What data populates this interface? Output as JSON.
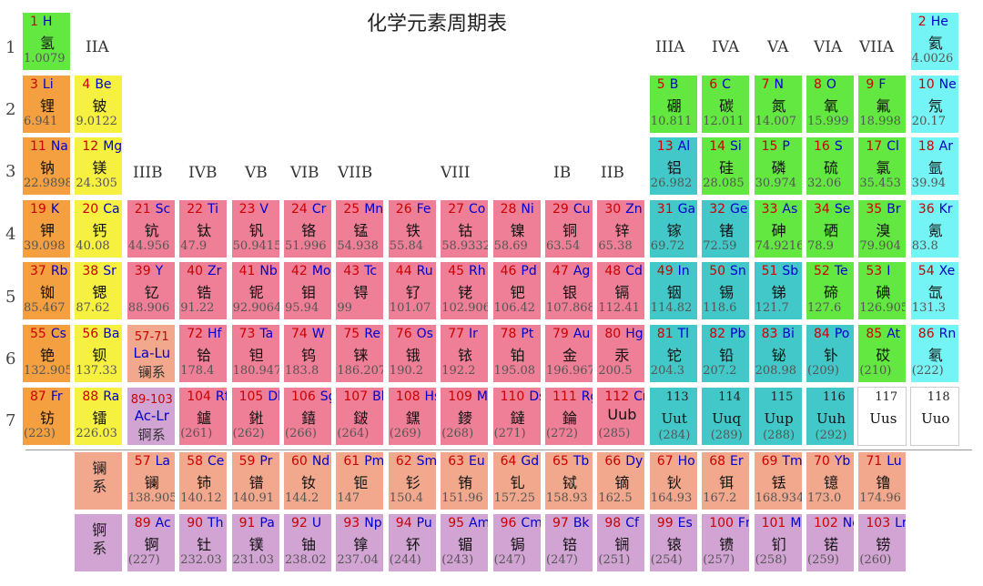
{
  "title": "化学元素周期表",
  "colors": {
    "alkali": "#f4a040",
    "alkaline": "#f6f040",
    "transition": "#ef7f97",
    "poor": "#42c8c8",
    "nonmetal": "#62e840",
    "noble": "#74f4f4",
    "lanthanide": "#f2a88c",
    "actinide": "#d2a4d4",
    "unknown": "#ffffff"
  },
  "period_labels": [
    "1",
    "2",
    "3",
    "4",
    "5",
    "6",
    "7"
  ],
  "group_labels": {
    "IIA": "IIA",
    "IIIB": "IIIB",
    "IVB": "IVB",
    "VB": "VB",
    "VIB": "VIB",
    "VIIB": "VIIB",
    "VIII": "VIII",
    "IB": "IB",
    "IIB": "IIB",
    "IIIA": "IIIA",
    "IVA": "IVA",
    "VA": "VA",
    "VIA": "VIA",
    "VIIA": "VIIA"
  },
  "series_labels": {
    "lanthanide": [
      "镧",
      "系"
    ],
    "actinide": [
      "锕",
      "系"
    ]
  },
  "elements": [
    {
      "n": "1",
      "s": "H",
      "cn": "氢",
      "m": "1.0079",
      "col": 1,
      "row": 1,
      "cat": "nonmetal"
    },
    {
      "n": "2",
      "s": "He",
      "cn": "氦",
      "m": "4.0026",
      "col": 18,
      "row": 1,
      "cat": "noble"
    },
    {
      "n": "3",
      "s": "Li",
      "cn": "锂",
      "m": "6.941",
      "col": 1,
      "row": 2,
      "cat": "alkali"
    },
    {
      "n": "4",
      "s": "Be",
      "cn": "铍",
      "m": "9.0122",
      "col": 2,
      "row": 2,
      "cat": "alkaline"
    },
    {
      "n": "5",
      "s": "B",
      "cn": "硼",
      "m": "10.811",
      "col": 13,
      "row": 2,
      "cat": "nonmetal"
    },
    {
      "n": "6",
      "s": "C",
      "cn": "碳",
      "m": "12.011",
      "col": 14,
      "row": 2,
      "cat": "nonmetal"
    },
    {
      "n": "7",
      "s": "N",
      "cn": "氮",
      "m": "14.007",
      "col": 15,
      "row": 2,
      "cat": "nonmetal"
    },
    {
      "n": "8",
      "s": "O",
      "cn": "氧",
      "m": "15.999",
      "col": 16,
      "row": 2,
      "cat": "nonmetal"
    },
    {
      "n": "9",
      "s": "F",
      "cn": "氟",
      "m": "18.998",
      "col": 17,
      "row": 2,
      "cat": "nonmetal"
    },
    {
      "n": "10",
      "s": "Ne",
      "cn": "氖",
      "m": "20.17",
      "col": 18,
      "row": 2,
      "cat": "noble"
    },
    {
      "n": "11",
      "s": "Na",
      "cn": "钠",
      "m": "22.9898",
      "col": 1,
      "row": 3,
      "cat": "alkali"
    },
    {
      "n": "12",
      "s": "Mg",
      "cn": "镁",
      "m": "24.305",
      "col": 2,
      "row": 3,
      "cat": "alkaline"
    },
    {
      "n": "13",
      "s": "Al",
      "cn": "铝",
      "m": "26.982",
      "col": 13,
      "row": 3,
      "cat": "poor"
    },
    {
      "n": "14",
      "s": "Si",
      "cn": "硅",
      "m": "28.085",
      "col": 14,
      "row": 3,
      "cat": "nonmetal"
    },
    {
      "n": "15",
      "s": "P",
      "cn": "磷",
      "m": "30.974",
      "col": 15,
      "row": 3,
      "cat": "nonmetal"
    },
    {
      "n": "16",
      "s": "S",
      "cn": "硫",
      "m": "32.06",
      "col": 16,
      "row": 3,
      "cat": "nonmetal"
    },
    {
      "n": "17",
      "s": "Cl",
      "cn": "氯",
      "m": "35.453",
      "col": 17,
      "row": 3,
      "cat": "nonmetal"
    },
    {
      "n": "18",
      "s": "Ar",
      "cn": "氩",
      "m": "39.94",
      "col": 18,
      "row": 3,
      "cat": "noble"
    },
    {
      "n": "19",
      "s": "K",
      "cn": "钾",
      "m": "39.098",
      "col": 1,
      "row": 4,
      "cat": "alkali"
    },
    {
      "n": "20",
      "s": "Ca",
      "cn": "钙",
      "m": "40.08",
      "col": 2,
      "row": 4,
      "cat": "alkaline"
    },
    {
      "n": "21",
      "s": "Sc",
      "cn": "钪",
      "m": "44.956",
      "col": 3,
      "row": 4,
      "cat": "transition"
    },
    {
      "n": "22",
      "s": "Ti",
      "cn": "钛",
      "m": "47.9",
      "col": 4,
      "row": 4,
      "cat": "transition"
    },
    {
      "n": "23",
      "s": "V",
      "cn": "钒",
      "m": "50.9415",
      "col": 5,
      "row": 4,
      "cat": "transition"
    },
    {
      "n": "24",
      "s": "Cr",
      "cn": "铬",
      "m": "51.996",
      "col": 6,
      "row": 4,
      "cat": "transition"
    },
    {
      "n": "25",
      "s": "Mn",
      "cn": "锰",
      "m": "54.938",
      "col": 7,
      "row": 4,
      "cat": "transition"
    },
    {
      "n": "26",
      "s": "Fe",
      "cn": "铁",
      "m": "55.84",
      "col": 8,
      "row": 4,
      "cat": "transition"
    },
    {
      "n": "27",
      "s": "Co",
      "cn": "钴",
      "m": "58.9332",
      "col": 9,
      "row": 4,
      "cat": "transition"
    },
    {
      "n": "28",
      "s": "Ni",
      "cn": "镍",
      "m": "58.69",
      "col": 10,
      "row": 4,
      "cat": "transition"
    },
    {
      "n": "29",
      "s": "Cu",
      "cn": "铜",
      "m": "63.54",
      "col": 11,
      "row": 4,
      "cat": "transition"
    },
    {
      "n": "30",
      "s": "Zn",
      "cn": "锌",
      "m": "65.38",
      "col": 12,
      "row": 4,
      "cat": "transition"
    },
    {
      "n": "31",
      "s": "Ga",
      "cn": "镓",
      "m": "69.72",
      "col": 13,
      "row": 4,
      "cat": "poor"
    },
    {
      "n": "32",
      "s": "Ge",
      "cn": "锗",
      "m": "72.59",
      "col": 14,
      "row": 4,
      "cat": "poor"
    },
    {
      "n": "33",
      "s": "As",
      "cn": "砷",
      "m": "74.9216",
      "col": 15,
      "row": 4,
      "cat": "nonmetal"
    },
    {
      "n": "34",
      "s": "Se",
      "cn": "硒",
      "m": "78.9",
      "col": 16,
      "row": 4,
      "cat": "nonmetal"
    },
    {
      "n": "35",
      "s": "Br",
      "cn": "溴",
      "m": "79.904",
      "col": 17,
      "row": 4,
      "cat": "nonmetal"
    },
    {
      "n": "36",
      "s": "Kr",
      "cn": "氪",
      "m": "83.8",
      "col": 18,
      "row": 4,
      "cat": "noble"
    },
    {
      "n": "37",
      "s": "Rb",
      "cn": "铷",
      "m": "85.467",
      "col": 1,
      "row": 5,
      "cat": "alkali"
    },
    {
      "n": "38",
      "s": "Sr",
      "cn": "锶",
      "m": "87.62",
      "col": 2,
      "row": 5,
      "cat": "alkaline"
    },
    {
      "n": "39",
      "s": "Y",
      "cn": "钇",
      "m": "88.906",
      "col": 3,
      "row": 5,
      "cat": "transition"
    },
    {
      "n": "40",
      "s": "Zr",
      "cn": "锆",
      "m": "91.22",
      "col": 4,
      "row": 5,
      "cat": "transition"
    },
    {
      "n": "41",
      "s": "Nb",
      "cn": "铌",
      "m": "92.9064",
      "col": 5,
      "row": 5,
      "cat": "transition"
    },
    {
      "n": "42",
      "s": "Mo",
      "cn": "钼",
      "m": "95.94",
      "col": 6,
      "row": 5,
      "cat": "transition"
    },
    {
      "n": "43",
      "s": "Tc",
      "cn": "锝",
      "m": "99",
      "col": 7,
      "row": 5,
      "cat": "transition"
    },
    {
      "n": "44",
      "s": "Ru",
      "cn": "钌",
      "m": "101.07",
      "col": 8,
      "row": 5,
      "cat": "transition"
    },
    {
      "n": "45",
      "s": "Rh",
      "cn": "铑",
      "m": "102.906",
      "col": 9,
      "row": 5,
      "cat": "transition"
    },
    {
      "n": "46",
      "s": "Pd",
      "cn": "钯",
      "m": "106.42",
      "col": 10,
      "row": 5,
      "cat": "transition"
    },
    {
      "n": "47",
      "s": "Ag",
      "cn": "银",
      "m": "107.868",
      "col": 11,
      "row": 5,
      "cat": "transition"
    },
    {
      "n": "48",
      "s": "Cd",
      "cn": "镉",
      "m": "112.41",
      "col": 12,
      "row": 5,
      "cat": "transition"
    },
    {
      "n": "49",
      "s": "In",
      "cn": "铟",
      "m": "114.82",
      "col": 13,
      "row": 5,
      "cat": "poor"
    },
    {
      "n": "50",
      "s": "Sn",
      "cn": "锡",
      "m": "118.6",
      "col": 14,
      "row": 5,
      "cat": "poor"
    },
    {
      "n": "51",
      "s": "Sb",
      "cn": "锑",
      "m": "121.7",
      "col": 15,
      "row": 5,
      "cat": "poor"
    },
    {
      "n": "52",
      "s": "Te",
      "cn": "碲",
      "m": "127.6",
      "col": 16,
      "row": 5,
      "cat": "nonmetal"
    },
    {
      "n": "53",
      "s": "I",
      "cn": "碘",
      "m": "126.905",
      "col": 17,
      "row": 5,
      "cat": "nonmetal"
    },
    {
      "n": "54",
      "s": "Xe",
      "cn": "氙",
      "m": "131.3",
      "col": 18,
      "row": 5,
      "cat": "noble"
    },
    {
      "n": "55",
      "s": "Cs",
      "cn": "铯",
      "m": "132.905",
      "col": 1,
      "row": 6,
      "cat": "alkali"
    },
    {
      "n": "56",
      "s": "Ba",
      "cn": "钡",
      "m": "137.33",
      "col": 2,
      "row": 6,
      "cat": "alkaline"
    },
    {
      "n": "72",
      "s": "Hf",
      "cn": "铪",
      "m": "178.4",
      "col": 4,
      "row": 6,
      "cat": "transition"
    },
    {
      "n": "73",
      "s": "Ta",
      "cn": "钽",
      "m": "180.947",
      "col": 5,
      "row": 6,
      "cat": "transition"
    },
    {
      "n": "74",
      "s": "W",
      "cn": "钨",
      "m": "183.8",
      "col": 6,
      "row": 6,
      "cat": "transition"
    },
    {
      "n": "75",
      "s": "Re",
      "cn": "铼",
      "m": "186.207",
      "col": 7,
      "row": 6,
      "cat": "transition"
    },
    {
      "n": "76",
      "s": "Os",
      "cn": "锇",
      "m": "190.2",
      "col": 8,
      "row": 6,
      "cat": "transition"
    },
    {
      "n": "77",
      "s": "Ir",
      "cn": "铱",
      "m": "192.2",
      "col": 9,
      "row": 6,
      "cat": "transition"
    },
    {
      "n": "78",
      "s": "Pt",
      "cn": "铂",
      "m": "195.08",
      "col": 10,
      "row": 6,
      "cat": "transition"
    },
    {
      "n": "79",
      "s": "Au",
      "cn": "金",
      "m": "196.967",
      "col": 11,
      "row": 6,
      "cat": "transition"
    },
    {
      "n": "80",
      "s": "Hg",
      "cn": "汞",
      "m": "200.5",
      "col": 12,
      "row": 6,
      "cat": "transition"
    },
    {
      "n": "81",
      "s": "Tl",
      "cn": "铊",
      "m": "204.3",
      "col": 13,
      "row": 6,
      "cat": "poor"
    },
    {
      "n": "82",
      "s": "Pb",
      "cn": "铅",
      "m": "207.2",
      "col": 14,
      "row": 6,
      "cat": "poor"
    },
    {
      "n": "83",
      "s": "Bi",
      "cn": "铋",
      "m": "208.98",
      "col": 15,
      "row": 6,
      "cat": "poor"
    },
    {
      "n": "84",
      "s": "Po",
      "cn": "钋",
      "m": "(209)",
      "col": 16,
      "row": 6,
      "cat": "poor"
    },
    {
      "n": "85",
      "s": "At",
      "cn": "砹",
      "m": "(210)",
      "col": 17,
      "row": 6,
      "cat": "nonmetal"
    },
    {
      "n": "86",
      "s": "Rn",
      "cn": "氡",
      "m": "(222)",
      "col": 18,
      "row": 6,
      "cat": "noble"
    },
    {
      "n": "87",
      "s": "Fr",
      "cn": "钫",
      "m": "(223)",
      "col": 1,
      "row": 7,
      "cat": "alkali"
    },
    {
      "n": "88",
      "s": "Ra",
      "cn": "镭",
      "m": "226.03",
      "col": 2,
      "row": 7,
      "cat": "alkaline"
    },
    {
      "n": "104",
      "s": "Rf",
      "cn": "鑪",
      "m": "(261)",
      "col": 4,
      "row": 7,
      "cat": "transition"
    },
    {
      "n": "105",
      "s": "Db",
      "cn": "𨧀",
      "m": "(262)",
      "col": 5,
      "row": 7,
      "cat": "transition"
    },
    {
      "n": "106",
      "s": "Sg",
      "cn": "𨭎",
      "m": "(266)",
      "col": 6,
      "row": 7,
      "cat": "transition"
    },
    {
      "n": "107",
      "s": "Bh",
      "cn": "𨨏",
      "m": "(264)",
      "col": 7,
      "row": 7,
      "cat": "transition"
    },
    {
      "n": "108",
      "s": "Hs",
      "cn": "𨭆",
      "m": "(269)",
      "col": 8,
      "row": 7,
      "cat": "transition"
    },
    {
      "n": "109",
      "s": "Mt",
      "cn": "䥑",
      "m": "(268)",
      "col": 9,
      "row": 7,
      "cat": "transition"
    },
    {
      "n": "110",
      "s": "Ds",
      "cn": "鐽",
      "m": "(271)",
      "col": 10,
      "row": 7,
      "cat": "transition"
    },
    {
      "n": "111",
      "s": "Rg",
      "cn": "錀",
      "m": "(272)",
      "col": 11,
      "row": 7,
      "cat": "transition"
    },
    {
      "n": "112",
      "s": "Cn",
      "cn": "Uub",
      "m": "(285)",
      "col": 12,
      "row": 7,
      "cat": "transition"
    },
    {
      "n": "113",
      "s": "",
      "cn": "Uut",
      "m": "(284)",
      "col": 13,
      "row": 7,
      "cat": "poor",
      "syn": true
    },
    {
      "n": "114",
      "s": "",
      "cn": "Uuq",
      "m": "(289)",
      "col": 14,
      "row": 7,
      "cat": "poor",
      "syn": true
    },
    {
      "n": "115",
      "s": "",
      "cn": "Uup",
      "m": "(288)",
      "col": 15,
      "row": 7,
      "cat": "poor",
      "syn": true
    },
    {
      "n": "116",
      "s": "",
      "cn": "Uuh",
      "m": "(292)",
      "col": 16,
      "row": 7,
      "cat": "poor",
      "syn": true
    },
    {
      "n": "117",
      "s": "",
      "cn": "Uus",
      "m": "",
      "col": 17,
      "row": 7,
      "cat": "unknown",
      "syn": true
    },
    {
      "n": "118",
      "s": "",
      "cn": "Uuo",
      "m": "",
      "col": 18,
      "row": 7,
      "cat": "unknown",
      "syn": true
    }
  ],
  "ranges": [
    {
      "num": "57-71",
      "sym": "La-Lu",
      "cn": "镧系",
      "col": 3,
      "row": 6,
      "cat": "lanthanide"
    },
    {
      "num": "89-103",
      "sym": "Ac-Lr",
      "cn": "锕系",
      "col": 3,
      "row": 7,
      "cat": "actinide"
    }
  ],
  "lanthanides": [
    {
      "n": "57",
      "s": "La",
      "cn": "镧",
      "m": "138.905"
    },
    {
      "n": "58",
      "s": "Ce",
      "cn": "铈",
      "m": "140.12"
    },
    {
      "n": "59",
      "s": "Pr",
      "cn": "镨",
      "m": "140.91"
    },
    {
      "n": "60",
      "s": "Nd",
      "cn": "钕",
      "m": "144.2"
    },
    {
      "n": "61",
      "s": "Pm",
      "cn": "钷",
      "m": "147"
    },
    {
      "n": "62",
      "s": "Sm",
      "cn": "钐",
      "m": "150.4"
    },
    {
      "n": "63",
      "s": "Eu",
      "cn": "铕",
      "m": "151.96"
    },
    {
      "n": "64",
      "s": "Gd",
      "cn": "钆",
      "m": "157.25"
    },
    {
      "n": "65",
      "s": "Tb",
      "cn": "铽",
      "m": "158.93"
    },
    {
      "n": "66",
      "s": "Dy",
      "cn": "镝",
      "m": "162.5"
    },
    {
      "n": "67",
      "s": "Ho",
      "cn": "钬",
      "m": "164.93"
    },
    {
      "n": "68",
      "s": "Er",
      "cn": "铒",
      "m": "167.2"
    },
    {
      "n": "69",
      "s": "Tm",
      "cn": "铥",
      "m": "168.934"
    },
    {
      "n": "70",
      "s": "Yb",
      "cn": "镱",
      "m": "173.0"
    },
    {
      "n": "71",
      "s": "Lu",
      "cn": "镥",
      "m": "174.96"
    }
  ],
  "actinides": [
    {
      "n": "89",
      "s": "Ac",
      "cn": "锕",
      "m": "(227)"
    },
    {
      "n": "90",
      "s": "Th",
      "cn": "钍",
      "m": "232.03"
    },
    {
      "n": "91",
      "s": "Pa",
      "cn": "镤",
      "m": "231.03"
    },
    {
      "n": "92",
      "s": "U",
      "cn": "铀",
      "m": "238.02"
    },
    {
      "n": "93",
      "s": "Np",
      "cn": "镎",
      "m": "237.04"
    },
    {
      "n": "94",
      "s": "Pu",
      "cn": "钚",
      "m": "(244)"
    },
    {
      "n": "95",
      "s": "Am",
      "cn": "镅",
      "m": "(243)"
    },
    {
      "n": "96",
      "s": "Cm",
      "cn": "锔",
      "m": "(247)"
    },
    {
      "n": "97",
      "s": "Bk",
      "cn": "锫",
      "m": "(247)"
    },
    {
      "n": "98",
      "s": "Cf",
      "cn": "锎",
      "m": "(251)"
    },
    {
      "n": "99",
      "s": "Es",
      "cn": "锿",
      "m": "(254)"
    },
    {
      "n": "100",
      "s": "Fm",
      "cn": "镄",
      "m": "(257)"
    },
    {
      "n": "101",
      "s": "Md",
      "cn": "钔",
      "m": "(258)"
    },
    {
      "n": "102",
      "s": "No",
      "cn": "锘",
      "m": "(259)"
    },
    {
      "n": "103",
      "s": "Lr",
      "cn": "铹",
      "m": "(260)"
    }
  ]
}
